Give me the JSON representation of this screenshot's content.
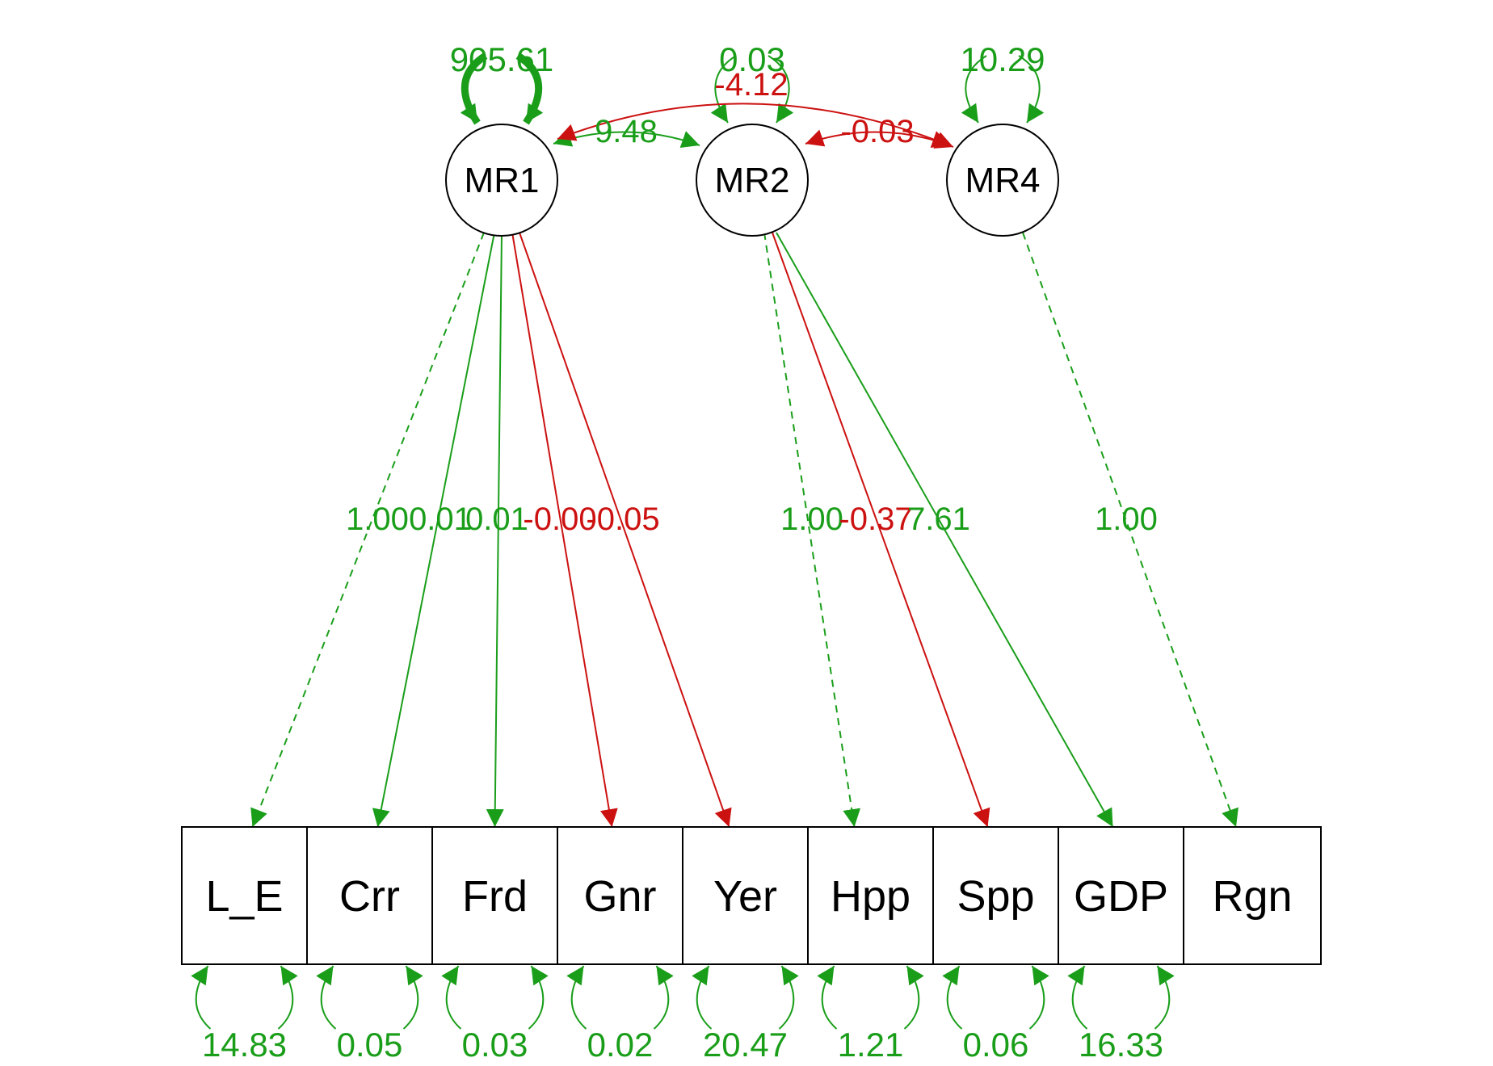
{
  "colors": {
    "positive": "#1a9e1a",
    "negative": "#cc1111",
    "node": "#000000",
    "background": "#ffffff"
  },
  "latents": [
    {
      "id": "MR1",
      "label": "MR1",
      "variance": "905.61",
      "variance_sign": "positive",
      "variance_weight": "heavy"
    },
    {
      "id": "MR2",
      "label": "MR2",
      "variance": "0.03",
      "variance_sign": "positive",
      "variance_weight": "normal"
    },
    {
      "id": "MR4",
      "label": "MR4",
      "variance": "10.29",
      "variance_sign": "positive",
      "variance_weight": "normal"
    }
  ],
  "observed": [
    {
      "id": "L_E",
      "label": "L_E",
      "residual": "14.83"
    },
    {
      "id": "Crr",
      "label": "Crr",
      "residual": "0.05"
    },
    {
      "id": "Frd",
      "label": "Frd",
      "residual": "0.03"
    },
    {
      "id": "Gnr",
      "label": "Gnr",
      "residual": "0.02"
    },
    {
      "id": "Yer",
      "label": "Yer",
      "residual": "20.47"
    },
    {
      "id": "Hpp",
      "label": "Hpp",
      "residual": "1.21"
    },
    {
      "id": "Spp",
      "label": "Spp",
      "residual": "0.06"
    },
    {
      "id": "GDP",
      "label": "GDP",
      "residual": "16.33"
    },
    {
      "id": "Rgn",
      "label": "Rgn",
      "residual": ""
    }
  ],
  "loadings": [
    {
      "from": "MR1",
      "to": "L_E",
      "value": "1.00",
      "sign": "positive",
      "fixed": true
    },
    {
      "from": "MR1",
      "to": "Crr",
      "value": "0.01",
      "sign": "positive",
      "fixed": false
    },
    {
      "from": "MR1",
      "to": "Frd",
      "value": "0.01",
      "sign": "positive",
      "fixed": false
    },
    {
      "from": "MR1",
      "to": "Gnr",
      "value": "-0.00",
      "sign": "negative",
      "fixed": false
    },
    {
      "from": "MR1",
      "to": "Yer",
      "value": "-0.05",
      "sign": "negative",
      "fixed": false
    },
    {
      "from": "MR2",
      "to": "Hpp",
      "value": "1.00",
      "sign": "positive",
      "fixed": true
    },
    {
      "from": "MR2",
      "to": "Spp",
      "value": "-0.37",
      "sign": "negative",
      "fixed": false
    },
    {
      "from": "MR2",
      "to": "GDP",
      "value": "7.61",
      "sign": "positive",
      "fixed": false
    },
    {
      "from": "MR4",
      "to": "Rgn",
      "value": "1.00",
      "sign": "positive",
      "fixed": true
    }
  ],
  "covariances": [
    {
      "a": "MR1",
      "b": "MR2",
      "value": "9.48",
      "sign": "positive"
    },
    {
      "a": "MR2",
      "b": "MR4",
      "value": "-0.03",
      "sign": "negative"
    },
    {
      "a": "MR1",
      "b": "MR4",
      "value": "-4.12",
      "sign": "negative"
    }
  ]
}
